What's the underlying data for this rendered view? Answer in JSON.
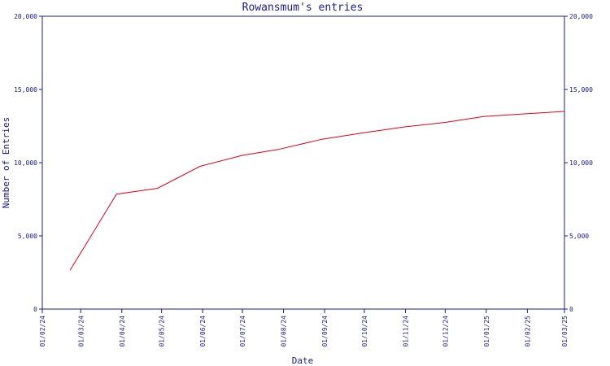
{
  "chart_data": {
    "type": "line",
    "title": "Rowansmum's entries",
    "xlabel": "Date",
    "ylabel": "Number of Entries",
    "xlim": [
      "2024-02-01",
      "2025-03-01"
    ],
    "ylim": [
      0,
      20000
    ],
    "x_tick_labels": [
      "01/02/24",
      "01/03/24",
      "01/04/24",
      "01/05/24",
      "01/06/24",
      "01/07/24",
      "01/08/24",
      "01/09/24",
      "01/10/24",
      "01/11/24",
      "01/12/24",
      "01/01/25",
      "01/02/25",
      "01/03/25"
    ],
    "y_ticks": [
      0,
      5000,
      10000,
      15000,
      20000
    ],
    "y_tick_labels": [
      "0",
      "5,000",
      "10,000",
      "15,000",
      "20,000"
    ],
    "grid": false,
    "color": "#e0001b",
    "x": [
      "2024-02-22",
      "2024-03-28",
      "2024-04-28",
      "2024-05-30",
      "2024-07-01",
      "2024-07-28",
      "2024-08-30",
      "2024-10-01",
      "2024-11-01",
      "2024-12-01",
      "2024-12-30",
      "2025-02-01",
      "2025-03-01"
    ],
    "y": [
      2650,
      7850,
      8250,
      9750,
      10500,
      10900,
      11600,
      12050,
      12450,
      12750,
      13150,
      13350,
      13500
    ]
  }
}
